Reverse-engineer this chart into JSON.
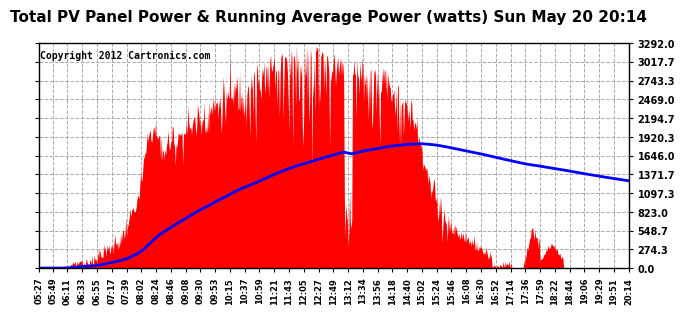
{
  "title": "Total PV Panel Power & Running Average Power (watts) Sun May 20 20:14",
  "copyright": "Copyright 2012 Cartronics.com",
  "y_max": 3292.0,
  "y_ticks": [
    0.0,
    274.3,
    548.7,
    823.0,
    1097.3,
    1371.7,
    1646.0,
    1920.3,
    2194.7,
    2469.0,
    2743.3,
    3017.7,
    3292.0
  ],
  "background_color": "#ffffff",
  "plot_bg_color": "#ffffff",
  "grid_color": "#aaaaaa",
  "fill_color": "#ff0000",
  "line_color": "#0000ff",
  "title_color": "#000000",
  "x_labels": [
    "05:27",
    "05:49",
    "06:11",
    "06:33",
    "06:55",
    "07:17",
    "07:39",
    "08:02",
    "08:24",
    "08:46",
    "09:08",
    "09:30",
    "09:53",
    "10:15",
    "10:37",
    "10:59",
    "11:21",
    "11:43",
    "12:05",
    "12:27",
    "12:49",
    "13:12",
    "13:34",
    "13:56",
    "14:18",
    "14:40",
    "15:02",
    "15:24",
    "15:46",
    "16:08",
    "16:30",
    "16:52",
    "17:14",
    "17:36",
    "17:59",
    "18:22",
    "18:44",
    "19:06",
    "19:29",
    "19:51",
    "20:14"
  ],
  "title_fontsize": 11,
  "copyright_fontsize": 7,
  "tick_fontsize": 7,
  "xlabel_fontsize": 6
}
